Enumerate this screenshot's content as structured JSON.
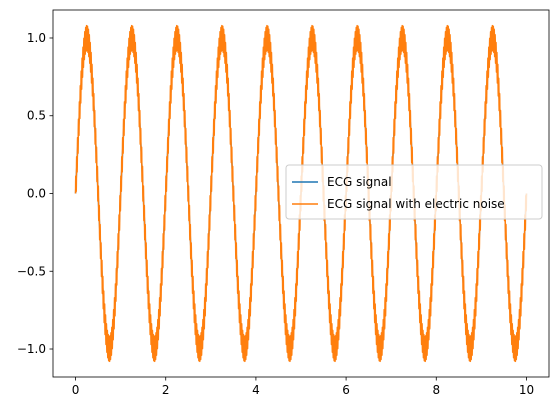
{
  "chart_data": {
    "type": "line",
    "title": "",
    "xlabel": "",
    "ylabel": "",
    "xlim": [
      -0.5,
      10.5
    ],
    "ylim": [
      -1.18,
      1.18
    ],
    "grid": false,
    "legend_placement": "center-right",
    "x_ticks": [
      {
        "value": 0,
        "label": "0"
      },
      {
        "value": 2,
        "label": "2"
      },
      {
        "value": 4,
        "label": "4"
      },
      {
        "value": 6,
        "label": "6"
      },
      {
        "value": 8,
        "label": "8"
      },
      {
        "value": 10,
        "label": "10"
      }
    ],
    "y_ticks": [
      {
        "value": -1.0,
        "label": "−1.0"
      },
      {
        "value": -0.5,
        "label": "−0.5"
      },
      {
        "value": 0.0,
        "label": "0.0"
      },
      {
        "value": 0.5,
        "label": "0.5"
      },
      {
        "value": 1.0,
        "label": "1.0"
      }
    ],
    "series": [
      {
        "name": "ECG signal",
        "color": "#1f77b4",
        "function": "sine",
        "amplitude": 1.0,
        "frequency_hz": 1.0,
        "x_range": [
          0,
          10
        ],
        "noise_amplitude": 0.0,
        "noise_frequency_hz": 0
      },
      {
        "name": "ECG signal with electric noise",
        "color": "#ff7f0e",
        "function": "sine",
        "amplitude": 1.0,
        "frequency_hz": 1.0,
        "x_range": [
          0,
          10
        ],
        "noise_amplitude": 0.08,
        "noise_frequency_hz": 50
      }
    ]
  }
}
